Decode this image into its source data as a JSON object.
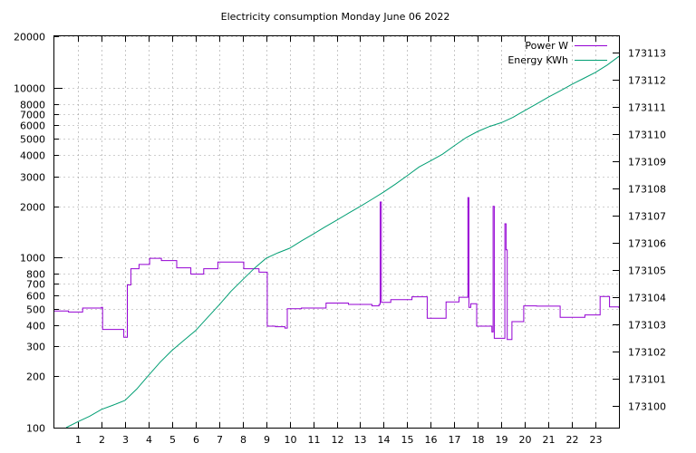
{
  "chart_data": {
    "type": "line",
    "title": "Electricity consumption Monday June 06 2022",
    "xlabel": "",
    "ylabel": "",
    "y2label": "",
    "grid": true,
    "legend_position": "top-right",
    "x_range": [
      0,
      24
    ],
    "x_ticks": [
      1,
      2,
      3,
      4,
      5,
      6,
      7,
      8,
      9,
      10,
      11,
      12,
      13,
      14,
      15,
      16,
      17,
      18,
      19,
      20,
      21,
      22,
      23
    ],
    "y_scale": "log",
    "y_range": [
      100,
      20000
    ],
    "y_ticks": [
      100,
      200,
      300,
      400,
      500,
      600,
      700,
      800,
      1000,
      2000,
      3000,
      4000,
      5000,
      6000,
      7000,
      8000,
      10000,
      20000
    ],
    "y2_range": [
      173099.2,
      173113.6
    ],
    "y2_ticks": [
      173100,
      173101,
      173102,
      173103,
      173104,
      173105,
      173106,
      173107,
      173108,
      173109,
      173110,
      173111,
      173112,
      173113
    ],
    "series": [
      {
        "name": "Power W",
        "axis": "left",
        "color": "#9400d3",
        "step": true,
        "points": [
          [
            0.0,
            485
          ],
          [
            0.6,
            478
          ],
          [
            1.2,
            505
          ],
          [
            2.0,
            510
          ],
          [
            2.05,
            378
          ],
          [
            2.9,
            378
          ],
          [
            2.95,
            340
          ],
          [
            3.05,
            340
          ],
          [
            3.1,
            690
          ],
          [
            3.25,
            860
          ],
          [
            3.6,
            910
          ],
          [
            4.05,
            990
          ],
          [
            4.55,
            960
          ],
          [
            5.2,
            870
          ],
          [
            5.8,
            800
          ],
          [
            6.35,
            860
          ],
          [
            6.95,
            940
          ],
          [
            8.05,
            860
          ],
          [
            8.7,
            820
          ],
          [
            9.0,
            820
          ],
          [
            9.05,
            395
          ],
          [
            9.4,
            392
          ],
          [
            9.8,
            385
          ],
          [
            9.9,
            500
          ],
          [
            10.5,
            505
          ],
          [
            11.5,
            505
          ],
          [
            11.55,
            540
          ],
          [
            12.5,
            530
          ],
          [
            13.5,
            520
          ],
          [
            13.8,
            530
          ],
          [
            13.85,
            2120
          ],
          [
            13.9,
            545
          ],
          [
            14.3,
            565
          ],
          [
            15.2,
            588
          ],
          [
            15.85,
            440
          ],
          [
            16.65,
            548
          ],
          [
            17.2,
            584
          ],
          [
            17.55,
            584
          ],
          [
            17.58,
            2250
          ],
          [
            17.62,
            510
          ],
          [
            17.7,
            535
          ],
          [
            17.95,
            395
          ],
          [
            18.5,
            395
          ],
          [
            18.6,
            365
          ],
          [
            18.65,
            2000
          ],
          [
            18.7,
            335
          ],
          [
            19.1,
            335
          ],
          [
            19.15,
            1580
          ],
          [
            19.2,
            1110
          ],
          [
            19.25,
            330
          ],
          [
            19.45,
            420
          ],
          [
            19.95,
            520
          ],
          [
            20.5,
            518
          ],
          [
            21.5,
            445
          ],
          [
            22.55,
            460
          ],
          [
            23.2,
            590
          ],
          [
            23.6,
            512
          ],
          [
            24.0,
            505
          ]
        ]
      },
      {
        "name": "Energy KWh",
        "axis": "right",
        "color": "#009e73",
        "step": false,
        "points": [
          [
            0.5,
            173099.2
          ],
          [
            1.0,
            173099.42
          ],
          [
            1.5,
            173099.62
          ],
          [
            2.0,
            173099.87
          ],
          [
            2.5,
            173100.03
          ],
          [
            3.0,
            173100.2
          ],
          [
            3.5,
            173100.62
          ],
          [
            4.0,
            173101.12
          ],
          [
            4.5,
            173101.61
          ],
          [
            5.0,
            173102.04
          ],
          [
            5.5,
            173102.41
          ],
          [
            6.0,
            173102.77
          ],
          [
            6.5,
            173103.24
          ],
          [
            7.0,
            173103.71
          ],
          [
            7.5,
            173104.21
          ],
          [
            8.0,
            173104.64
          ],
          [
            8.5,
            173105.06
          ],
          [
            9.0,
            173105.43
          ],
          [
            9.5,
            173105.63
          ],
          [
            10.0,
            173105.8
          ],
          [
            10.5,
            173106.07
          ],
          [
            11.0,
            173106.32
          ],
          [
            11.5,
            173106.58
          ],
          [
            12.0,
            173106.83
          ],
          [
            12.5,
            173107.09
          ],
          [
            13.0,
            173107.34
          ],
          [
            13.5,
            173107.6
          ],
          [
            14.0,
            173107.87
          ],
          [
            14.5,
            173108.16
          ],
          [
            15.0,
            173108.47
          ],
          [
            15.5,
            173108.79
          ],
          [
            16.0,
            173109.02
          ],
          [
            16.5,
            173109.26
          ],
          [
            17.0,
            173109.57
          ],
          [
            17.5,
            173109.87
          ],
          [
            18.0,
            173110.1
          ],
          [
            18.5,
            173110.28
          ],
          [
            19.0,
            173110.42
          ],
          [
            19.5,
            173110.62
          ],
          [
            20.0,
            173110.87
          ],
          [
            20.5,
            173111.11
          ],
          [
            21.0,
            173111.36
          ],
          [
            21.5,
            173111.59
          ],
          [
            22.0,
            173111.83
          ],
          [
            22.5,
            173112.05
          ],
          [
            23.0,
            173112.27
          ],
          [
            23.5,
            173112.54
          ],
          [
            24.0,
            173112.86
          ]
        ]
      }
    ]
  }
}
